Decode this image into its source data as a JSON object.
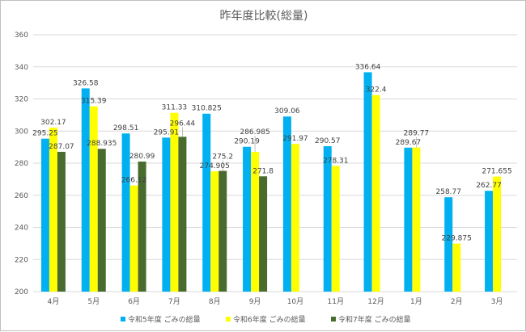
{
  "chart_data": {
    "type": "bar",
    "title": "昨年度比較(総量)",
    "xlabel": "",
    "ylabel": "",
    "ylim": [
      200,
      360
    ],
    "yticks": [
      200,
      220,
      240,
      260,
      280,
      300,
      320,
      340,
      360
    ],
    "grid": true,
    "legend_position": "bottom",
    "categories": [
      "4月",
      "5月",
      "6月",
      "7月",
      "8月",
      "9月",
      "10月",
      "11月",
      "12月",
      "1月",
      "2月",
      "3月"
    ],
    "series": [
      {
        "name": "令和5年度 ごみの総量",
        "color": "#00b0f0",
        "values": [
          295.25,
          326.58,
          298.51,
          295.91,
          310.825,
          290.19,
          309.06,
          290.57,
          336.64,
          289.67,
          258.77,
          262.77
        ]
      },
      {
        "name": "令和6年度 ごみの総量",
        "color": "#ffff00",
        "values": [
          302.17,
          315.39,
          266.12,
          311.33,
          274.905,
          286.985,
          291.97,
          278.31,
          322.4,
          289.77,
          229.875,
          271.655
        ]
      },
      {
        "name": "令和7年度 ごみの総量",
        "color": "#4a6b2e",
        "values": [
          287.07,
          288.935,
          280.99,
          296.44,
          275.2,
          271.8,
          null,
          null,
          null,
          null,
          null,
          null
        ]
      }
    ]
  }
}
